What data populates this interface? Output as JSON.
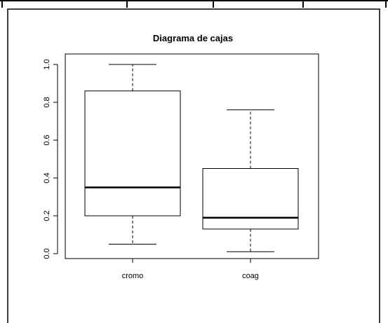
{
  "chart_data": {
    "type": "boxplot",
    "title": "Diagrama de cajas",
    "xlabel": "",
    "ylabel": "",
    "categories": [
      "cromo",
      "coag"
    ],
    "boxes": [
      {
        "category": "cromo",
        "whisker_low": 0.05,
        "q1": 0.2,
        "median": 0.35,
        "q3": 0.86,
        "whisker_high": 1.0
      },
      {
        "category": "coag",
        "whisker_low": 0.01,
        "q1": 0.13,
        "median": 0.19,
        "q3": 0.45,
        "whisker_high": 0.76
      }
    ],
    "ylim": [
      -0.02,
      1.04
    ],
    "yticks": [
      0.0,
      0.2,
      0.4,
      0.6,
      0.8,
      1.0
    ],
    "ytick_labels": [
      "0.0",
      "0.2",
      "0.4",
      "0.6",
      "0.8",
      "1.0"
    ],
    "grid": false,
    "colors": {
      "box_fill": "#ffffff",
      "stroke": "#000000"
    }
  }
}
